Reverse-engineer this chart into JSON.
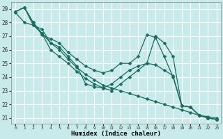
{
  "xlabel": "Humidex (Indice chaleur)",
  "background_color": "#c8eaea",
  "grid_color": "#ffffff",
  "line_color": "#1a6b60",
  "markersize": 2.5,
  "linewidth": 0.9,
  "xlim": [
    -0.5,
    23.5
  ],
  "ylim": [
    20.6,
    29.5
  ],
  "yticks": [
    21,
    22,
    23,
    24,
    25,
    26,
    27,
    28,
    29
  ],
  "xticks": [
    0,
    1,
    2,
    3,
    4,
    5,
    6,
    7,
    8,
    9,
    10,
    11,
    12,
    13,
    14,
    15,
    16,
    17,
    18,
    19,
    20,
    21,
    22,
    23
  ],
  "lines": [
    [
      28.8,
      29.1,
      28.0,
      27.2,
      26.5,
      26.0,
      25.3,
      24.7,
      24.2,
      23.8,
      23.4,
      23.2,
      23.0,
      22.8,
      22.6,
      22.4,
      22.2,
      22.0,
      21.8,
      21.6,
      21.4,
      21.2,
      21.1,
      21.0
    ],
    [
      28.8,
      29.1,
      28.0,
      27.1,
      26.8,
      26.5,
      25.8,
      25.3,
      24.8,
      24.5,
      24.3,
      24.5,
      25.0,
      25.0,
      25.5,
      27.1,
      26.9,
      25.5,
      24.0,
      21.9,
      21.8,
      21.2,
      21.0,
      20.9
    ],
    [
      28.8,
      29.1,
      27.8,
      27.2,
      26.0,
      25.5,
      25.0,
      24.4,
      23.9,
      23.5,
      23.2,
      23.0,
      23.5,
      24.0,
      24.5,
      25.0,
      27.0,
      26.5,
      25.5,
      21.9,
      21.8,
      21.2,
      21.0,
      20.9
    ],
    [
      28.7,
      28.0,
      27.8,
      27.5,
      26.5,
      26.2,
      25.5,
      24.8,
      23.5,
      23.3,
      23.2,
      23.5,
      24.0,
      24.5,
      24.8,
      25.0,
      24.9,
      24.5,
      24.1,
      21.9,
      21.8,
      21.2,
      21.0,
      20.9
    ]
  ]
}
